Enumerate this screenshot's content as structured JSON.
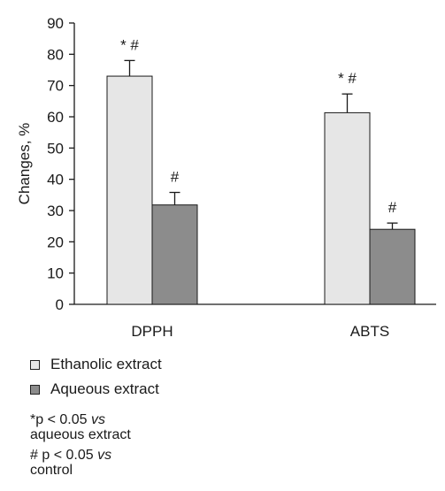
{
  "colors": {
    "ethanolic": "#e6e6e6",
    "aqueous": "#8c8c8c",
    "axis": "#1a1a1a"
  },
  "chart_data": {
    "type": "bar",
    "ylabel": "Changes, %",
    "ylim": [
      0,
      90
    ],
    "yticks": [
      0,
      10,
      20,
      30,
      40,
      50,
      60,
      70,
      80,
      90
    ],
    "categories": [
      "DPPH",
      "ABTS"
    ],
    "series": [
      {
        "name": "Ethanolic extract",
        "values": [
          73,
          61.3
        ],
        "errors": [
          5,
          6
        ],
        "marks": [
          "*  #",
          "*  #"
        ]
      },
      {
        "name": "Aqueous extract",
        "values": [
          31.8,
          24
        ],
        "errors": [
          4,
          2
        ],
        "marks": [
          "#",
          "#"
        ]
      }
    ],
    "legend": "bottom-left"
  },
  "notes": [
    {
      "lead": "*p  < 0.05 ",
      "vs": "vs",
      "tail": "aqueous extract"
    },
    {
      "lead": "# p < 0.05  ",
      "vs": "vs",
      "tail": "control"
    }
  ]
}
